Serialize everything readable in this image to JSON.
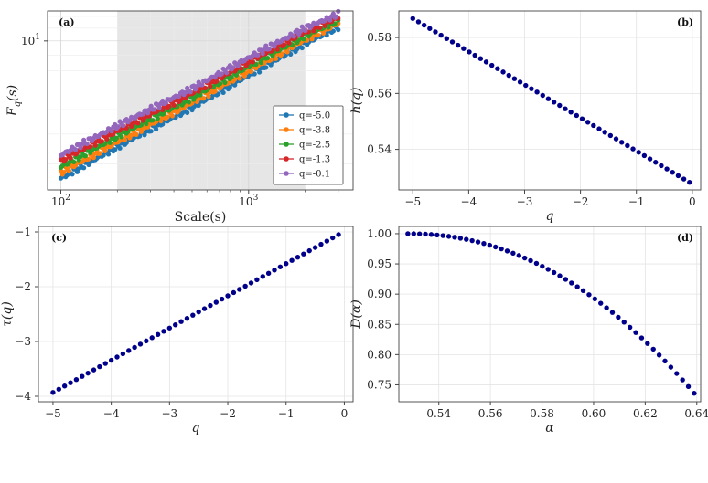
{
  "chart_data": [
    {
      "panel": "(a)",
      "type": "scatter",
      "xlabel": "Scale(s)",
      "ylabel": "F_q(s)",
      "xscale": "log",
      "yscale": "log",
      "xlim": [
        85,
        3600
      ],
      "ylim": [
        3.3,
        12.5
      ],
      "x_tick_labels": [
        "10^2",
        "10^3"
      ],
      "y_tick_labels": [
        "10^1"
      ],
      "shaded_region": [
        200,
        2000
      ],
      "grid": true,
      "legend_position": "lower-right",
      "series": [
        {
          "name": "q=-5.0",
          "color": "#1f77b4",
          "points": [
            [
              100,
              3.6
            ],
            [
              200,
              4.55
            ],
            [
              500,
              6.1
            ],
            [
              1000,
              7.75
            ],
            [
              2000,
              9.8
            ],
            [
              3000,
              11.1
            ]
          ]
        },
        {
          "name": "q=-3.8",
          "color": "#ff7f0e",
          "points": [
            [
              100,
              3.75
            ],
            [
              200,
              4.72
            ],
            [
              500,
              6.32
            ],
            [
              1000,
              8.0
            ],
            [
              2000,
              10.1
            ],
            [
              3000,
              11.4
            ]
          ]
        },
        {
          "name": "q=-2.5",
          "color": "#2ca02c",
          "points": [
            [
              100,
              3.92
            ],
            [
              200,
              4.92
            ],
            [
              500,
              6.55
            ],
            [
              1000,
              8.28
            ],
            [
              2000,
              10.4
            ],
            [
              3000,
              11.65
            ]
          ]
        },
        {
          "name": "q=-1.3",
          "color": "#d62728",
          "points": [
            [
              100,
              4.1
            ],
            [
              200,
              5.12
            ],
            [
              500,
              6.78
            ],
            [
              1000,
              8.55
            ],
            [
              2000,
              10.7
            ],
            [
              3000,
              11.9
            ]
          ]
        },
        {
          "name": "q=-0.1",
          "color": "#9467bd",
          "points": [
            [
              100,
              4.28
            ],
            [
              200,
              5.32
            ],
            [
              500,
              7.02
            ],
            [
              1000,
              8.82
            ],
            [
              2000,
              11.0
            ],
            [
              3000,
              12.2
            ]
          ]
        }
      ]
    },
    {
      "panel": "(b)",
      "type": "scatter",
      "xlabel": "q",
      "ylabel": "h(q)",
      "xlim": [
        -5.25,
        0.15
      ],
      "ylim": [
        0.5255,
        0.5895
      ],
      "x_ticks": [
        -5,
        -4,
        -3,
        -2,
        -1,
        0
      ],
      "y_ticks": [
        0.54,
        0.56,
        0.58
      ],
      "color": "#00008b",
      "grid": true,
      "x_range": [
        -5.0,
        -0.05
      ],
      "y_at_range": [
        0.5868,
        0.5282
      ],
      "n_points": 50
    },
    {
      "panel": "(c)",
      "type": "scatter",
      "xlabel": "q",
      "ylabel": "τ(q)",
      "xlim": [
        -5.25,
        0.15
      ],
      "ylim": [
        -4.1,
        -0.9
      ],
      "x_ticks": [
        -5,
        -4,
        -3,
        -2,
        -1,
        0
      ],
      "y_ticks": [
        -4,
        -3,
        -2,
        -1
      ],
      "color": "#00008b",
      "grid": true,
      "x_range": [
        -5.0,
        -0.1
      ],
      "y_at_range": [
        -3.93,
        -1.05
      ],
      "n_points": 50
    },
    {
      "panel": "(d)",
      "type": "scatter",
      "xlabel": "α",
      "ylabel": "D(α)",
      "xlim": [
        0.5245,
        0.6415
      ],
      "ylim": [
        0.722,
        1.012
      ],
      "x_ticks": [
        0.54,
        0.56,
        0.58,
        0.6,
        0.62,
        0.64
      ],
      "y_ticks": [
        0.75,
        0.8,
        0.85,
        0.9,
        0.95,
        1.0
      ],
      "color": "#00008b",
      "grid": true,
      "alpha_range": [
        0.528,
        0.639
      ],
      "D_range": [
        1.0,
        0.736
      ],
      "n_points": 50
    }
  ]
}
